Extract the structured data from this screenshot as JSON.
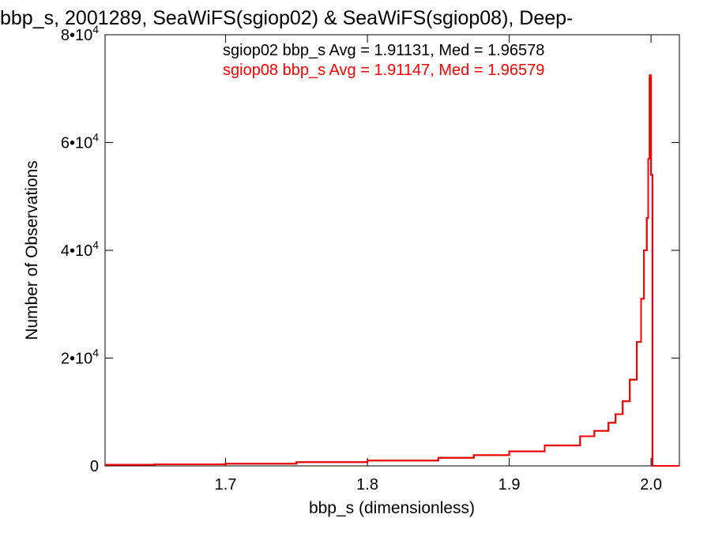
{
  "chart_data": {
    "type": "line",
    "title": "bbp_s, 2001289, SeaWiFS(sgiop02) & SeaWiFS(sgiop08), Deep-",
    "xlabel": "bbp_s (dimensionless)",
    "ylabel": "Number of Observations",
    "xlim": [
      1.615,
      2.02
    ],
    "ylim": [
      0,
      80000
    ],
    "x_ticks": [
      {
        "value": 1.7,
        "label": "1.7"
      },
      {
        "value": 1.8,
        "label": "1.8"
      },
      {
        "value": 1.9,
        "label": "1.9"
      },
      {
        "value": 2.0,
        "label": "2.0"
      }
    ],
    "y_ticks": [
      {
        "value": 0,
        "label": "0",
        "mantissa": "0",
        "exp": ""
      },
      {
        "value": 20000,
        "label": "2•10^4",
        "mantissa": "2•10",
        "exp": "4"
      },
      {
        "value": 40000,
        "label": "4•10^4",
        "mantissa": "4•10",
        "exp": "4"
      },
      {
        "value": 60000,
        "label": "6•10^4",
        "mantissa": "6•10",
        "exp": "4"
      },
      {
        "value": 80000,
        "label": "8•10^4",
        "mantissa": "8•10",
        "exp": "4"
      }
    ],
    "grid": false,
    "legend_position": "top-right",
    "annotations": [
      {
        "text": "sgiop02 bbp_s Avg = 1.91131, Med = 1.96578",
        "color": "#000000"
      },
      {
        "text": "sgiop08 bbp_s Avg = 1.91147, Med = 1.96579",
        "color": "#ff0000"
      }
    ],
    "series": [
      {
        "color": "#000000",
        "x": [
          1.615,
          1.65,
          1.7,
          1.75,
          1.8,
          1.85,
          1.875,
          1.9,
          1.925,
          1.95,
          1.96,
          1.97,
          1.975,
          1.98,
          1.985,
          1.99,
          1.993,
          1.995,
          1.997,
          1.998,
          1.999,
          2.0,
          2.001,
          2.02
        ],
        "y": [
          200,
          300,
          400,
          700,
          1000,
          1500,
          2000,
          2700,
          3800,
          5500,
          6500,
          8000,
          9600,
          12000,
          16000,
          23000,
          31000,
          40000,
          46000,
          57000,
          72000,
          54000,
          0,
          0
        ]
      },
      {
        "color": "#ff0000",
        "x": [
          1.615,
          1.65,
          1.7,
          1.75,
          1.8,
          1.85,
          1.875,
          1.9,
          1.925,
          1.95,
          1.96,
          1.97,
          1.975,
          1.98,
          1.985,
          1.99,
          1.993,
          1.995,
          1.997,
          1.998,
          1.999,
          2.0,
          2.001,
          2.02
        ],
        "y": [
          200,
          300,
          400,
          700,
          1000,
          1500,
          2000,
          2700,
          3800,
          5500,
          6500,
          8000,
          9600,
          12000,
          16000,
          23000,
          31000,
          40000,
          46000,
          57000,
          72500,
          54000,
          0,
          0
        ]
      }
    ]
  }
}
